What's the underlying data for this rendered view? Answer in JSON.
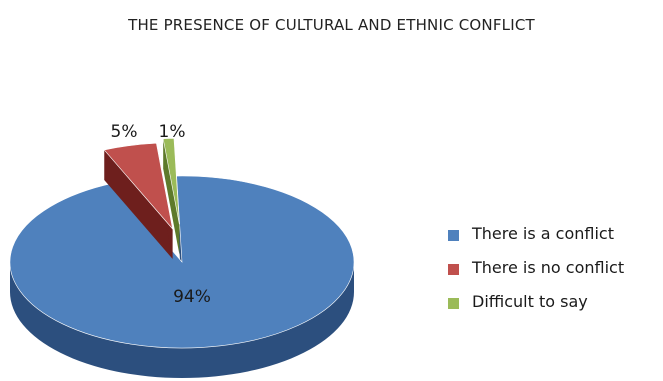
{
  "chart_data": {
    "type": "pie",
    "title": "THE PRESENCE OF CULTURAL AND ETHNIC CONFLICT",
    "three_d": true,
    "exploded": true,
    "legend_position": "right",
    "slices": [
      {
        "label": "There is a conflict",
        "value": 94,
        "display": "94%",
        "color": "#4f81bd",
        "side_color": "#2c4f7e"
      },
      {
        "label": "There is no conflict",
        "value": 5,
        "display": "5%",
        "color": "#c0504d",
        "side_color": "#6e1f1d"
      },
      {
        "label": "Difficult to say",
        "value": 1,
        "display": "1%",
        "color": "#9bbb59",
        "side_color": "#5e7a2b"
      }
    ]
  }
}
